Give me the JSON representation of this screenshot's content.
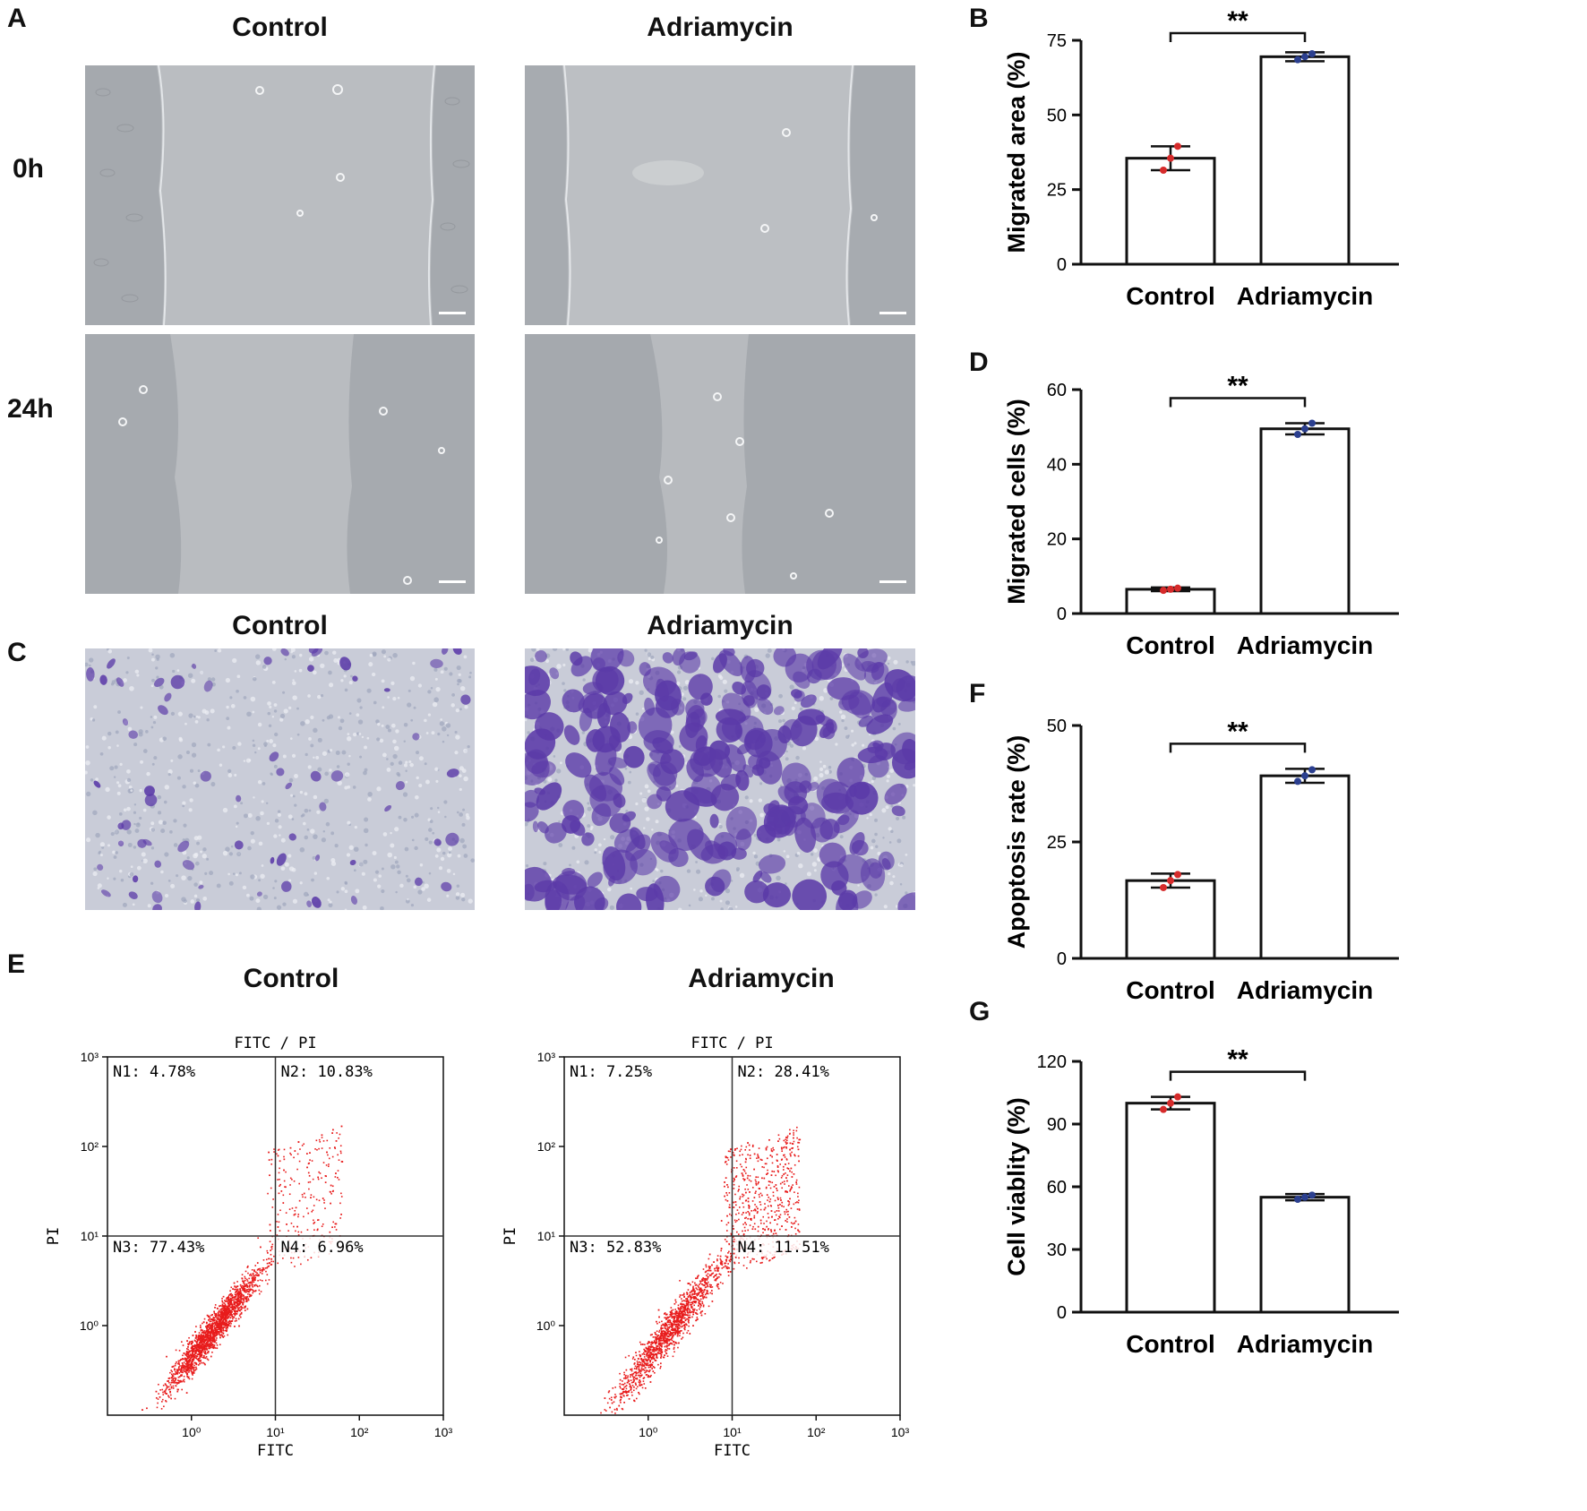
{
  "panel_labels": {
    "A": "A",
    "B": "B",
    "C": "C",
    "D": "D",
    "E": "E",
    "F": "F",
    "G": "G"
  },
  "group_titles": {
    "control": "Control",
    "adriamycin": "Adriamycin"
  },
  "time_labels": {
    "t0": "0h",
    "t24": "24h"
  },
  "colors": {
    "control_points": "#d62b2b",
    "adriamycin_points": "#2b3f8f",
    "flow_points": "#e81c1c",
    "crystal_violet": "#5b3aa8",
    "micro_bg": "#b9bcc0"
  },
  "chart_data": [
    {
      "id": "B",
      "type": "bar",
      "categories": [
        "Control",
        "Adriamycin"
      ],
      "values": [
        35.5,
        69.5
      ],
      "errors": [
        4,
        1.5
      ],
      "points": [
        [
          31.5,
          35.5,
          39.5
        ],
        [
          68.5,
          69.5,
          70.5
        ]
      ],
      "ylabel": "Migrated area (%)",
      "ylim": [
        0,
        75
      ],
      "yticks": [
        0,
        25,
        50,
        75
      ],
      "yticklabels": [
        "0",
        "25",
        "50",
        "75"
      ],
      "significance": "**"
    },
    {
      "id": "D",
      "type": "bar",
      "categories": [
        "Control",
        "Adriamycin"
      ],
      "values": [
        6.5,
        49.5
      ],
      "errors": [
        0.5,
        1.5
      ],
      "points": [
        [
          6.2,
          6.5,
          6.8
        ],
        [
          48,
          49.5,
          51
        ]
      ],
      "ylabel": "Migrated cells (%)",
      "ylim": [
        0,
        60
      ],
      "yticks": [
        0,
        20,
        40,
        60
      ],
      "yticklabels": [
        "0",
        "20",
        "40",
        "60"
      ],
      "significance": "**"
    },
    {
      "id": "F",
      "type": "bar",
      "categories": [
        "Control",
        "Adriamycin"
      ],
      "values": [
        16.7,
        39.2
      ],
      "errors": [
        1.5,
        1.5
      ],
      "points": [
        [
          15.2,
          16.7,
          18
        ],
        [
          38,
          39.2,
          40.5
        ]
      ],
      "ylabel": "Apoptosis rate (%)",
      "ylim": [
        0,
        50
      ],
      "yticks": [
        0,
        25,
        50
      ],
      "yticklabels": [
        "0",
        "25",
        "50"
      ],
      "significance": "**"
    },
    {
      "id": "G",
      "type": "bar",
      "categories": [
        "Control",
        "Adriamycin"
      ],
      "values": [
        100,
        55
      ],
      "errors": [
        3,
        1.5
      ],
      "points": [
        [
          97,
          100,
          103
        ],
        [
          54,
          55,
          56
        ]
      ],
      "ylabel": "Cell viablity (%)",
      "ylim": [
        0,
        120
      ],
      "yticks": [
        0,
        30,
        60,
        90,
        120
      ],
      "yticklabels": [
        "0",
        "30",
        "60",
        "90",
        "120"
      ],
      "significance": "**"
    },
    {
      "id": "E1",
      "type": "scatter",
      "title": "FITC / PI",
      "xlabel": "FITC",
      "ylabel": "PI",
      "xlim_log10": [
        -1,
        3
      ],
      "ylim_log10": [
        -1,
        3
      ],
      "xticklabels": [
        "10⁰",
        "10¹",
        "10²",
        "10³"
      ],
      "yticklabels": [
        "10⁰",
        "10¹",
        "10²",
        "10³"
      ],
      "quadrant_gate": [
        1,
        1
      ],
      "quadrants": {
        "N1": "N1: 4.78%",
        "N2": "N2: 10.83%",
        "N3": "N3: 77.43%",
        "N4": "N4: 6.96%"
      }
    },
    {
      "id": "E2",
      "type": "scatter",
      "title": "FITC / PI",
      "xlabel": "FITC",
      "ylabel": "PI",
      "xlim_log10": [
        -1,
        3
      ],
      "ylim_log10": [
        -1,
        3
      ],
      "xticklabels": [
        "10⁰",
        "10¹",
        "10²",
        "10³"
      ],
      "yticklabels": [
        "10⁰",
        "10¹",
        "10²",
        "10³"
      ],
      "quadrant_gate": [
        1,
        1
      ],
      "quadrants": {
        "N1": "N1: 7.25%",
        "N2": "N2: 28.41%",
        "N3": "N3: 52.83%",
        "N4": "N4: 11.51%"
      }
    }
  ]
}
